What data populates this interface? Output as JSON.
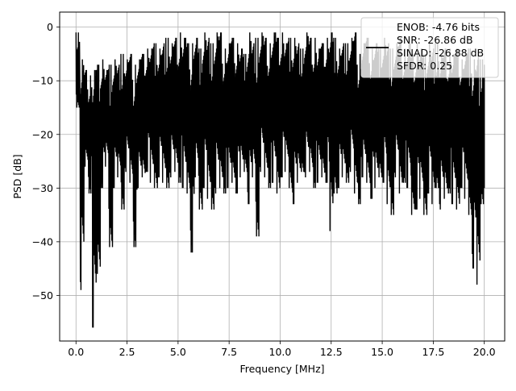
{
  "chart_data": {
    "type": "line",
    "title": "",
    "xlabel": "Frequency [MHz]",
    "ylabel": "PSD [dB]",
    "xlim": [
      -0.8,
      21.0
    ],
    "ylim": [
      -58.5,
      2.8
    ],
    "xticks": [
      0.0,
      2.5,
      5.0,
      7.5,
      10.0,
      12.5,
      15.0,
      17.5,
      20.0
    ],
    "xtick_labels": [
      "0.0",
      "2.5",
      "5.0",
      "7.5",
      "10.0",
      "12.5",
      "15.0",
      "17.5",
      "20.0"
    ],
    "yticks": [
      0,
      -10,
      -20,
      -30,
      -40,
      -50
    ],
    "ytick_labels": [
      "0",
      "−10",
      "−20",
      "−30",
      "−40",
      "−50"
    ],
    "grid": true,
    "legend_position": "top-right",
    "series": [
      {
        "color": "#000000",
        "x": [
          0.0,
          0.2,
          0.4,
          0.6,
          0.8,
          1.0,
          1.2,
          1.4,
          1.6,
          1.8,
          2.0,
          2.2,
          2.4,
          2.6,
          2.8,
          3.0,
          3.2,
          3.4,
          3.6,
          3.8,
          4.0,
          4.2,
          4.4,
          4.6,
          4.8,
          5.0,
          5.2,
          5.4,
          5.6,
          5.8,
          6.0,
          6.2,
          6.4,
          6.6,
          6.8,
          7.0,
          7.2,
          7.4,
          7.6,
          7.8,
          8.0,
          8.2,
          8.4,
          8.6,
          8.8,
          9.0,
          9.2,
          9.4,
          9.6,
          9.8,
          10.0,
          10.2,
          10.4,
          10.6,
          10.8,
          11.0,
          11.2,
          11.4,
          11.6,
          11.8,
          12.0,
          12.2,
          12.4,
          12.6,
          12.8,
          13.0,
          13.2,
          13.4,
          13.6,
          13.8,
          14.0,
          14.2,
          14.4,
          14.6,
          14.8,
          15.0,
          15.2,
          15.4,
          15.6,
          15.8,
          16.0,
          16.2,
          16.4,
          16.6,
          16.8,
          17.0,
          17.2,
          17.4,
          17.6,
          17.8,
          18.0,
          18.2,
          18.4,
          18.6,
          18.8,
          19.0,
          19.2,
          19.4,
          19.6,
          19.8,
          20.0
        ],
        "min": [
          -15,
          -49,
          -26,
          -31,
          -56,
          -46,
          -30,
          -26,
          -41,
          -30,
          -28,
          -34,
          -27,
          -29,
          -41,
          -30,
          -28,
          -27,
          -29,
          -30,
          -28,
          -29,
          -30,
          -28,
          -27,
          -29,
          -30,
          -31,
          -42,
          -28,
          -34,
          -30,
          -32,
          -34,
          -31,
          -30,
          -31,
          -30,
          -29,
          -31,
          -28,
          -27,
          -33,
          -28,
          -39,
          -27,
          -28,
          -30,
          -29,
          -31,
          -28,
          -27,
          -30,
          -33,
          -29,
          -27,
          -28,
          -27,
          -30,
          -29,
          -28,
          -29,
          -38,
          -31,
          -30,
          -28,
          -29,
          -27,
          -31,
          -33,
          -28,
          -29,
          -32,
          -30,
          -28,
          -29,
          -33,
          -35,
          -28,
          -31,
          -29,
          -30,
          -35,
          -34,
          -32,
          -35,
          -31,
          -33,
          -30,
          -34,
          -32,
          -31,
          -33,
          -34,
          -30,
          -32,
          -35,
          -45,
          -48,
          -33,
          -30
        ],
        "max": [
          -1,
          -6,
          -8,
          -9,
          -8,
          -7,
          -6,
          -8,
          -7,
          -6,
          -7,
          -5,
          -6,
          -5,
          -7,
          -6,
          -5,
          -4,
          -4,
          -3,
          -4,
          -3,
          -2,
          -3,
          -2,
          -1,
          -2,
          -3,
          -3,
          -2,
          -4,
          -1,
          -2,
          -3,
          -1,
          -1,
          -4,
          -3,
          -2,
          -3,
          -4,
          -5,
          -1,
          -3,
          -2,
          -1,
          -2,
          -3,
          -1,
          -2,
          -1,
          -3,
          -2,
          -2,
          -3,
          -4,
          -1,
          -2,
          -2,
          -4,
          -3,
          -2,
          -1,
          -2,
          -4,
          -3,
          -3,
          -2,
          -1,
          -5,
          -3,
          -2,
          -4,
          -3,
          -4,
          -2,
          -3,
          -4,
          -3,
          -2,
          -4,
          -3,
          -5,
          -3,
          -4,
          -5,
          -3,
          -4,
          -3,
          -5,
          -4,
          -4,
          -5,
          -4,
          -6,
          -5,
          -4,
          -6,
          -5,
          -6,
          -7
        ]
      }
    ],
    "legend": {
      "lines": [
        "ENOB: -4.76 bits",
        "SNR: -26.86 dB",
        "SINAD: -26.88 dB",
        "SFDR: 0.25"
      ]
    }
  }
}
